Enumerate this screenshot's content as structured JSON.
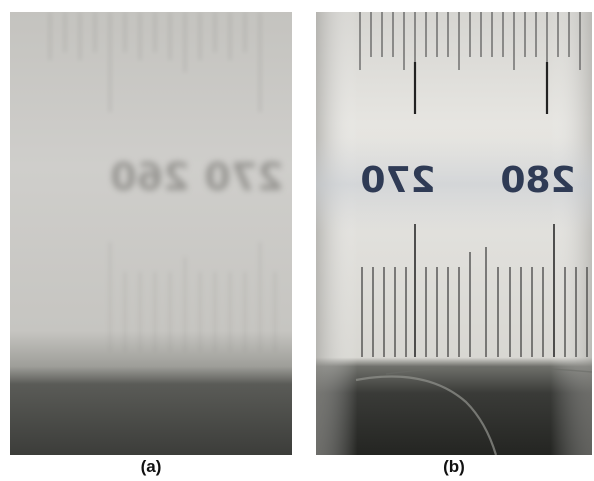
{
  "figure": {
    "panels": [
      {
        "caption": "(a)",
        "description_state": "blurred",
        "ruler_numbers": [
          "260",
          "270"
        ]
      },
      {
        "caption": "(b)",
        "description_state": "focused",
        "ruler_numbers": [
          "270",
          "280"
        ]
      }
    ]
  },
  "colors": {
    "background": "#ffffff",
    "panel_a_tone": "#c9c8c4",
    "panel_b_tone": "#e2e0db",
    "shadow": "#2e2f2c",
    "ink": "#2f3b55"
  }
}
